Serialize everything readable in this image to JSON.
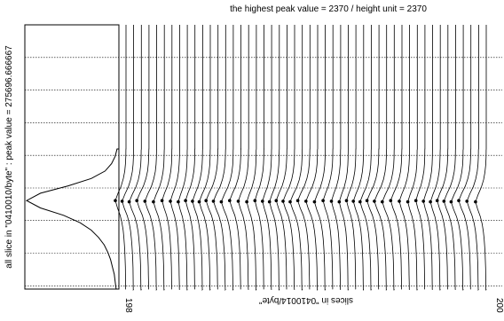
{
  "header": {
    "title": "the highest peak value = 2370 / height unit = 2370"
  },
  "left_panel": {
    "ylabel": "all slice in \"0410010/byte\" : peak value = 275696.666667",
    "dashed_line_count": 8
  },
  "right_panel": {
    "xlabel": "slices in \"0410014/byte\"",
    "xtick_first": "198",
    "xtick_last": "200"
  },
  "chart_data": [
    {
      "type": "line",
      "title": "",
      "ylabel": "all slice in \"0410010/byte\" : peak value = 275696.666667",
      "description_peak_value": 275696.666667,
      "series": [
        {
          "values": [
            0.02,
            0.04,
            0.08,
            0.15,
            0.3,
            0.55,
            0.85,
            1.0,
            0.85,
            0.6,
            0.42,
            0.3,
            0.22,
            0.16,
            0.12,
            0.09,
            0.07,
            0.05,
            0.04,
            0.03
          ]
        }
      ]
    },
    {
      "type": "line",
      "title": "the highest peak value = 2370 / height unit = 2370",
      "xlabel": "slices in \"0410014/byte\"",
      "x_first": 198,
      "x_last": 200,
      "slice_count": 48,
      "peak_value": 2370,
      "height_unit": 2370,
      "series": [
        {
          "values": [
            0.01,
            0.02,
            0.05,
            0.12,
            0.25,
            0.45,
            0.75,
            1.0,
            0.8,
            0.55,
            0.38,
            0.27,
            0.2,
            0.15,
            0.11,
            0.08,
            0.06,
            0.05,
            0.04,
            0.03
          ]
        }
      ]
    }
  ]
}
